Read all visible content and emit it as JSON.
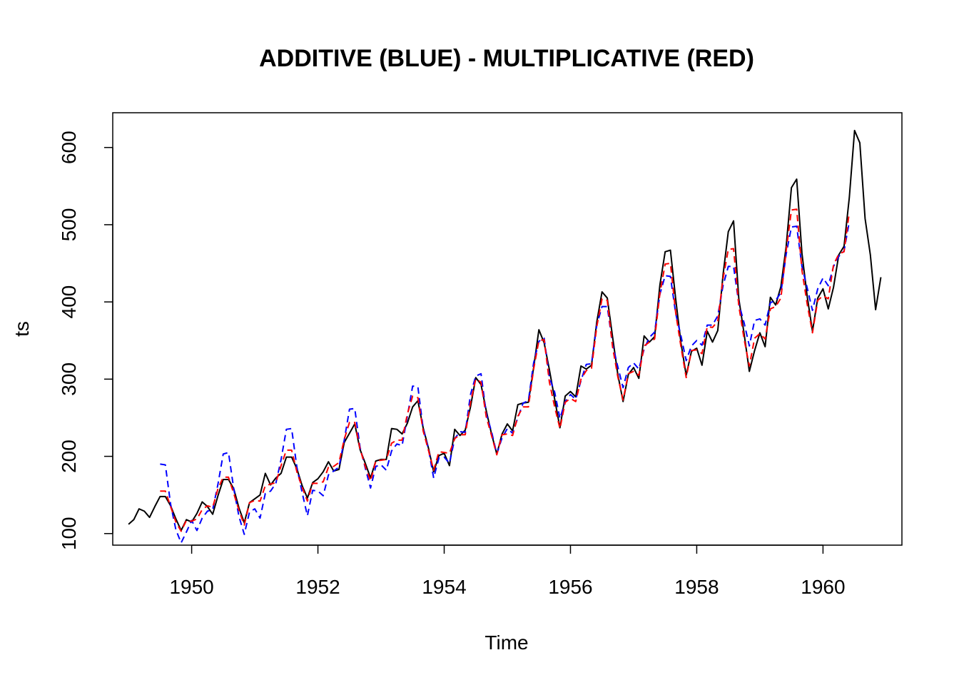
{
  "chart_data": {
    "type": "line",
    "title": "ADDITIVE (BLUE) - MULTIPLICATIVE (RED)",
    "xlabel": "Time",
    "ylabel": "ts",
    "xlim": [
      1948.75,
      1961.25
    ],
    "ylim": [
      85,
      645
    ],
    "x_ticks": [
      1950,
      1952,
      1954,
      1956,
      1958,
      1960
    ],
    "y_ticks": [
      100,
      200,
      300,
      400,
      500,
      600
    ],
    "grid": false,
    "legend": "none",
    "x_start": 1949,
    "x_step": 0.083333,
    "series": [
      {
        "style": "solid",
        "color": "#000000",
        "values": [
          112,
          118,
          132,
          129,
          121,
          135,
          148,
          148,
          136,
          119,
          104,
          118,
          115,
          126,
          141,
          135,
          125,
          149,
          170,
          170,
          158,
          133,
          114,
          140,
          145,
          150,
          178,
          163,
          172,
          178,
          199,
          199,
          184,
          162,
          146,
          166,
          171,
          180,
          193,
          181,
          183,
          218,
          230,
          242,
          209,
          191,
          172,
          194,
          196,
          196,
          236,
          235,
          229,
          243,
          264,
          272,
          237,
          211,
          180,
          201,
          204,
          188,
          235,
          227,
          234,
          264,
          302,
          293,
          259,
          229,
          203,
          229,
          242,
          233,
          267,
          269,
          270,
          315,
          364,
          347,
          312,
          274,
          237,
          278,
          284,
          277,
          317,
          313,
          318,
          374,
          413,
          405,
          355,
          306,
          271,
          306,
          315,
          301,
          356,
          348,
          355,
          422,
          465,
          467,
          404,
          347,
          305,
          336,
          340,
          318,
          362,
          348,
          363,
          435,
          491,
          505,
          404,
          359,
          310,
          337,
          360,
          342,
          406,
          396,
          420,
          472,
          548,
          559,
          463,
          407,
          362,
          405,
          417,
          391,
          419,
          461,
          472,
          535,
          622,
          606,
          508,
          461,
          390,
          432
        ]
      },
      {
        "style": "dashed",
        "color": "#0000ff",
        "values": [
          null,
          null,
          null,
          null,
          null,
          null,
          190,
          189,
          138,
          105,
          88,
          102,
          117,
          104,
          120,
          129,
          131,
          164,
          203,
          205,
          158,
          122,
          99,
          128,
          132,
          120,
          152,
          155,
          165,
          196,
          235,
          236,
          186,
          153,
          123,
          156,
          155,
          149,
          176,
          181,
          186,
          221,
          261,
          262,
          212,
          185,
          159,
          187,
          189,
          182,
          207,
          216,
          214,
          252,
          291,
          290,
          236,
          210,
          172,
          198,
          199,
          191,
          223,
          232,
          231,
          280,
          304,
          307,
          255,
          232,
          203,
          224,
          236,
          230,
          250,
          269,
          272,
          321,
          349,
          353,
          302,
          283,
          249,
          271,
          280,
          274,
          298,
          319,
          320,
          370,
          394,
          394,
          345,
          316,
          289,
          315,
          321,
          313,
          339,
          354,
          361,
          410,
          434,
          433,
          385,
          356,
          324,
          343,
          350,
          344,
          370,
          370,
          382,
          421,
          446,
          446,
          398,
          373,
          343,
          376,
          378,
          370,
          399,
          402,
          412,
          462,
          497,
          498,
          446,
          418,
          389,
          417,
          431,
          421,
          446,
          459,
          466,
          504,
          null,
          null,
          null,
          null,
          null,
          null
        ]
      },
      {
        "style": "dashed",
        "color": "#ff0000",
        "values": [
          null,
          null,
          null,
          null,
          null,
          null,
          155,
          155,
          135,
          115,
          103,
          117,
          116,
          119,
          131,
          136,
          134,
          158,
          173,
          173,
          152,
          130,
          111,
          140,
          143,
          142,
          162,
          164,
          166,
          188,
          208,
          208,
          180,
          160,
          142,
          165,
          165,
          167,
          186,
          187,
          192,
          222,
          244,
          244,
          210,
          187,
          168,
          194,
          195,
          196,
          217,
          221,
          221,
          255,
          278,
          276,
          233,
          208,
          182,
          206,
          205,
          204,
          223,
          228,
          228,
          270,
          300,
          296,
          251,
          227,
          202,
          228,
          229,
          227,
          252,
          264,
          264,
          313,
          350,
          351,
          296,
          264,
          236,
          270,
          275,
          271,
          300,
          311,
          314,
          368,
          404,
          402,
          342,
          303,
          273,
          307,
          310,
          305,
          343,
          348,
          352,
          411,
          449,
          450,
          386,
          342,
          302,
          337,
          338,
          333,
          368,
          367,
          375,
          430,
          468,
          469,
          395,
          352,
          317,
          353,
          359,
          352,
          391,
          394,
          405,
          466,
          519,
          520,
          441,
          397,
          360,
          402,
          408,
          404,
          448,
          462,
          465,
          516,
          null,
          null,
          null,
          null,
          null,
          null
        ]
      }
    ]
  }
}
